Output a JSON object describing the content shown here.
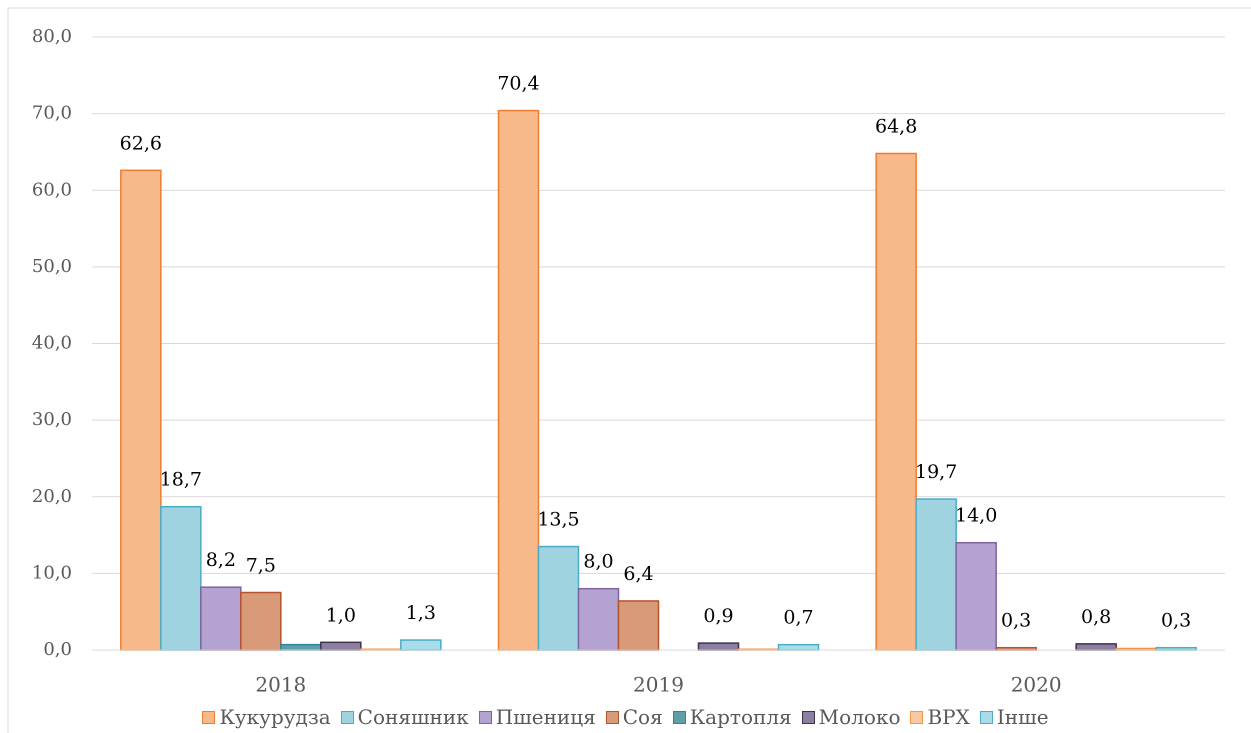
{
  "chart_data": {
    "type": "bar",
    "categories": [
      "2018",
      "2019",
      "2020"
    ],
    "series": [
      {
        "name": "Кукурудза",
        "color": "#f8b98a",
        "stroke": "#ed7d31",
        "values": [
          62.6,
          70.4,
          64.8
        ],
        "value_labels": [
          "62,6",
          "70,4",
          "64,8"
        ]
      },
      {
        "name": "Соняшник",
        "color": "#9fd3e0",
        "stroke": "#4bacc6",
        "values": [
          18.7,
          13.5,
          19.7
        ],
        "value_labels": [
          "18,7",
          "13,5",
          "19,7"
        ]
      },
      {
        "name": "Пшениця",
        "color": "#b4a2d0",
        "stroke": "#8064a2",
        "values": [
          8.2,
          8.0,
          14.0
        ],
        "value_labels": [
          "8,2",
          "8,0",
          "14,0"
        ]
      },
      {
        "name": "Соя",
        "color": "#d99a7a",
        "stroke": "#b5532a",
        "values": [
          7.5,
          6.4,
          0.3
        ],
        "value_labels": [
          "7,5",
          "6,4",
          "0,3"
        ]
      },
      {
        "name": "Картопля",
        "color": "#5f9ea8",
        "stroke": "#31849b",
        "values": [
          0.7,
          0,
          0
        ],
        "value_labels": [
          null,
          null,
          null
        ]
      },
      {
        "name": "Молоко",
        "color": "#8d7fa0",
        "stroke": "#3f3151",
        "values": [
          1.0,
          0.9,
          0.8
        ],
        "value_labels": [
          "1,0",
          "0,9",
          "0,8"
        ]
      },
      {
        "name": "ВРХ",
        "color": "#f9c7a0",
        "stroke": "#f79646",
        "values": [
          0.1,
          0.1,
          0.2
        ],
        "value_labels": [
          null,
          null,
          null
        ]
      },
      {
        "name": "Інше",
        "color": "#a8dce8",
        "stroke": "#4bacc6",
        "values": [
          1.3,
          0.7,
          0.3
        ],
        "value_labels": [
          "1,3",
          "0,7",
          "0,3"
        ]
      }
    ],
    "ylim": [
      0,
      80
    ],
    "yticks": [
      {
        "value": 0,
        "label": "0,0"
      },
      {
        "value": 10,
        "label": "10,0"
      },
      {
        "value": 20,
        "label": "20,0"
      },
      {
        "value": 30,
        "label": "30,0"
      },
      {
        "value": 40,
        "label": "40,0"
      },
      {
        "value": 50,
        "label": "50,0"
      },
      {
        "value": 60,
        "label": "60,0"
      },
      {
        "value": 70,
        "label": "70,0"
      },
      {
        "value": 80,
        "label": "80,0"
      }
    ],
    "grid": true,
    "legend": "bottom"
  }
}
